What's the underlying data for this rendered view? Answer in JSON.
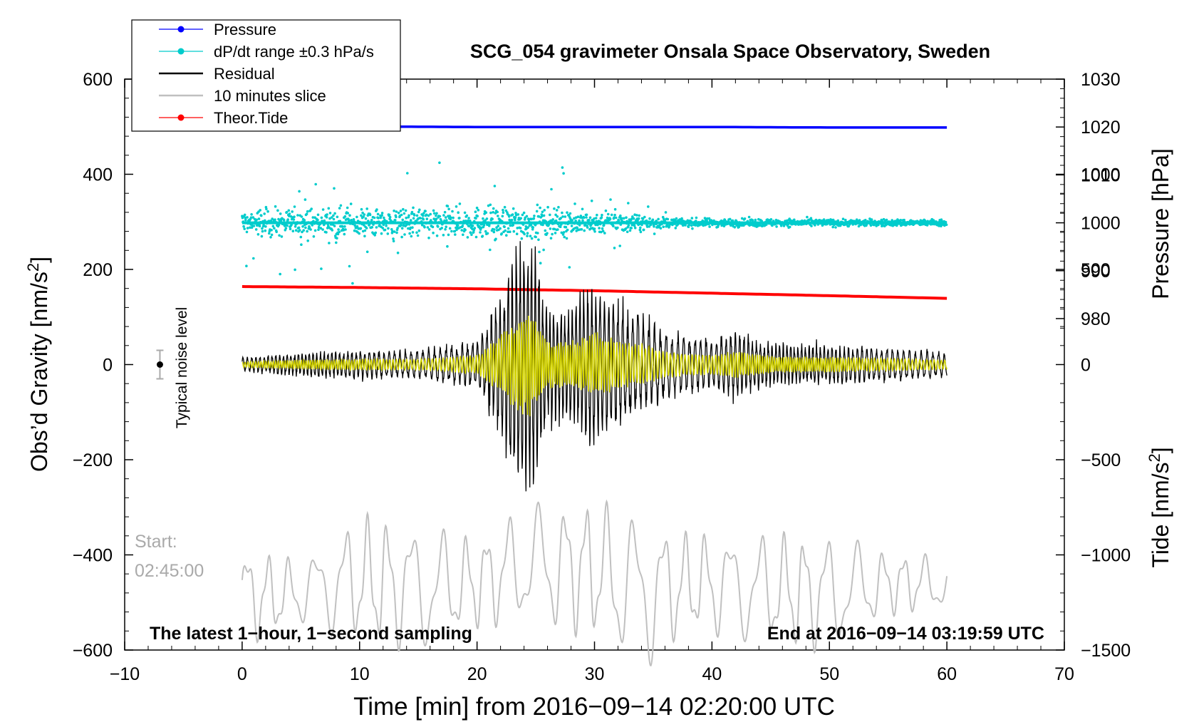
{
  "chart_data": {
    "type": "line",
    "title": "SCG_054 gravimeter Onsala Space Observatory, Sweden",
    "xlabel": "Time [min] from 2016−09−14 02:20:00 UTC",
    "ylabel_left": "Obs’d Gravity [nm/s",
    "ylabel_left_sup": "2",
    "ylabel_left_end": "]",
    "ylabel_right_pressure": "Pressure [hPa]",
    "ylabel_right_tide": "Tide [nm/s",
    "ylabel_right_tide_sup": "2",
    "ylabel_right_tide_end": "]",
    "xlim": [
      -10,
      70
    ],
    "ylim_left": [
      -600,
      600
    ],
    "ylim_pressure": [
      970,
      1030
    ],
    "ylim_tide": [
      -1500,
      1500
    ],
    "x_ticks": [
      "−10",
      "0",
      "10",
      "20",
      "30",
      "40",
      "50",
      "60",
      "70"
    ],
    "y_ticks_left": [
      "600",
      "400",
      "200",
      "0",
      "−200",
      "−400",
      "−600"
    ],
    "y_ticks_pressure": [
      "1030",
      "1020",
      "1010",
      "1000",
      "990",
      "980"
    ],
    "y_ticks_tide": [
      "1000",
      "500",
      "0",
      "−500",
      "−1000",
      "−1500"
    ],
    "legend": [
      {
        "label": "Pressure",
        "color": "#0000ff",
        "marker": "dot"
      },
      {
        "label": "dP/dt range ±0.3 hPa/s",
        "color": "#00cccc",
        "marker": "dot"
      },
      {
        "label": "Residual",
        "color": "#000000",
        "marker": "line"
      },
      {
        "label": "10 minutes slice",
        "color": "#c0c0c0",
        "marker": "line"
      },
      {
        "label": "Theor.Tide",
        "color": "#ff0000",
        "marker": "dot"
      }
    ],
    "legend_position": "top-left",
    "annotations": {
      "noise": "Typical noise level",
      "noise_level_y": 0,
      "noise_level_x": -7,
      "start_label": "Start:",
      "start_time": "02:45:00",
      "bottom_left": "The latest 1−hour, 1−second sampling",
      "bottom_right": "End at 2016−09−14 03:19:59 UTC"
    },
    "series": [
      {
        "name": "Pressure",
        "axis": "pressure",
        "x": [
          0,
          10,
          20,
          30,
          40,
          50,
          60
        ],
        "values": [
          1020.1,
          1020.1,
          1020.0,
          1020.0,
          1020.0,
          1019.9,
          1019.9
        ]
      },
      {
        "name": "dP/dt range ±0.3 hPa/s",
        "axis": "pressure",
        "center": 1000,
        "x": [
          0,
          25,
          37,
          60
        ],
        "spread": [
          2.5,
          3.0,
          0.8,
          0.6
        ]
      },
      {
        "name": "Residual",
        "axis": "left",
        "x": [
          0,
          5,
          10,
          15,
          20,
          22,
          23.5,
          24.5,
          26,
          28,
          30,
          32,
          34,
          36,
          40,
          42,
          45,
          50,
          55,
          60
        ],
        "values": [
          15,
          25,
          30,
          30,
          50,
          150,
          250,
          280,
          120,
          120,
          170,
          130,
          110,
          70,
          50,
          70,
          45,
          40,
          35,
          25
        ]
      },
      {
        "name": "10 minutes slice",
        "axis": "left",
        "x": [
          0,
          5,
          10,
          15,
          20,
          24,
          30,
          34,
          38,
          44,
          50,
          55,
          60
        ],
        "values": [
          -490,
          -480,
          -450,
          -470,
          -460,
          -420,
          -430,
          -480,
          -460,
          -470,
          -480,
          -460,
          -460
        ],
        "amplitude": [
          110,
          70,
          140,
          140,
          100,
          130,
          150,
          170,
          110,
          120,
          130,
          70,
          60
        ]
      },
      {
        "name": "Theor.Tide",
        "axis": "tide",
        "x": [
          0,
          10,
          20,
          30,
          40,
          50,
          60
        ],
        "values": [
          410,
          405,
          398,
          388,
          375,
          362,
          348
        ]
      }
    ]
  }
}
